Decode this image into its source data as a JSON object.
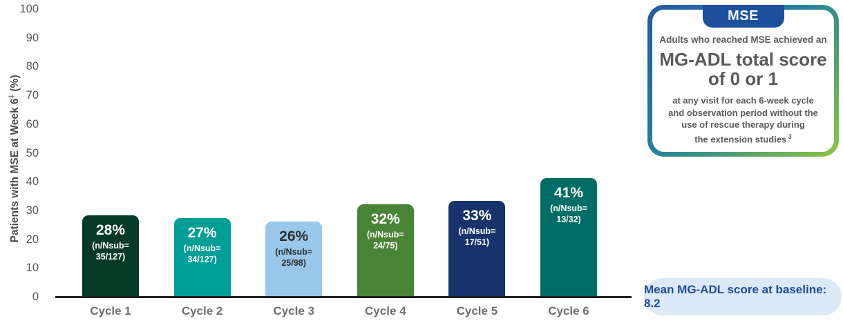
{
  "chart_data": {
    "type": "bar",
    "title": "",
    "ylabel": "Patients with MSE at Week 6",
    "ylabel_superscript": "‡",
    "ylabel_unit": " (%)",
    "ylim": [
      0,
      100
    ],
    "ytick_step": 10,
    "grid": false,
    "categories": [
      "Cycle 1",
      "Cycle 2",
      "Cycle 3",
      "Cycle 4",
      "Cycle 5",
      "Cycle 6"
    ],
    "values": [
      28,
      27,
      26,
      32,
      33,
      41
    ],
    "bar_value_labels": [
      "28%",
      "27%",
      "26%",
      "32%",
      "33%",
      "41%"
    ],
    "bar_sub_labels": [
      [
        "(n/Nsub=",
        "35/127)"
      ],
      [
        "(n/Nsub=",
        "34/127)"
      ],
      [
        "(n/Nsub=",
        "25/98)"
      ],
      [
        "(n/Nsub=",
        "24/75)"
      ],
      [
        "(n/Nsub=",
        "17/51)"
      ],
      [
        "(n/Nsub=",
        "13/32)"
      ]
    ],
    "bar_colors": [
      "#063A27",
      "#009E96",
      "#9AC8EB",
      "#498336",
      "#17336B",
      "#006E66"
    ],
    "bar_text_colors": [
      "#FFFFFF",
      "#FFFFFF",
      "#2E2E2E",
      "#FFFFFF",
      "#FFFFFF",
      "#FFFFFF"
    ],
    "axis_line_color": "#231F20"
  },
  "callout": {
    "tag": "MSE",
    "tag_bg": "#1C4F9C",
    "border_gradient": [
      "#2558A8",
      "#22819B",
      "#8CC63F"
    ],
    "line1": "Adults who reached MSE achieved an",
    "headline_line1": "MG-ADL total score",
    "headline_line2": "of 0 or 1",
    "body_lines": [
      "at any visit for each 6-week cycle",
      "and observation period without the",
      "use of rescue therapy during",
      "the extension studies"
    ],
    "body_superscript": "3"
  },
  "note": {
    "text": "Mean MG-ADL score at baseline: 8.2",
    "bg": "#DBE9F8",
    "color": "#1C4B9B"
  }
}
